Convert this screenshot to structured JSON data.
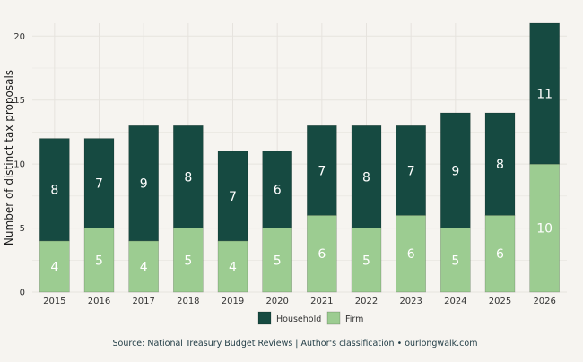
{
  "chart_data": {
    "type": "bar",
    "stacked": true,
    "categories": [
      "2015",
      "2016",
      "2017",
      "2018",
      "2019",
      "2020",
      "2021",
      "2022",
      "2023",
      "2024",
      "2025",
      "2026"
    ],
    "series": [
      {
        "name": "Firm",
        "color": "#9ccc91",
        "values": [
          4,
          5,
          4,
          5,
          4,
          5,
          6,
          5,
          6,
          5,
          6,
          10
        ]
      },
      {
        "name": "Household",
        "color": "#164a41",
        "values": [
          8,
          7,
          9,
          8,
          7,
          6,
          7,
          8,
          7,
          9,
          8,
          11
        ]
      }
    ],
    "legend_order": [
      "Household",
      "Firm"
    ],
    "ylabel": "Number of distinct tax proposals",
    "xlabel": "",
    "ylim": [
      0,
      21
    ],
    "yticks": [
      0,
      5,
      10,
      15,
      20
    ],
    "grid": true,
    "legend_position": "bottom",
    "caption": "Source: National Treasury Budget Reviews | Author's classification • ourlongwalk.com",
    "colors": {
      "background": "#f6f4f0",
      "grid": "#e6e3de"
    }
  }
}
